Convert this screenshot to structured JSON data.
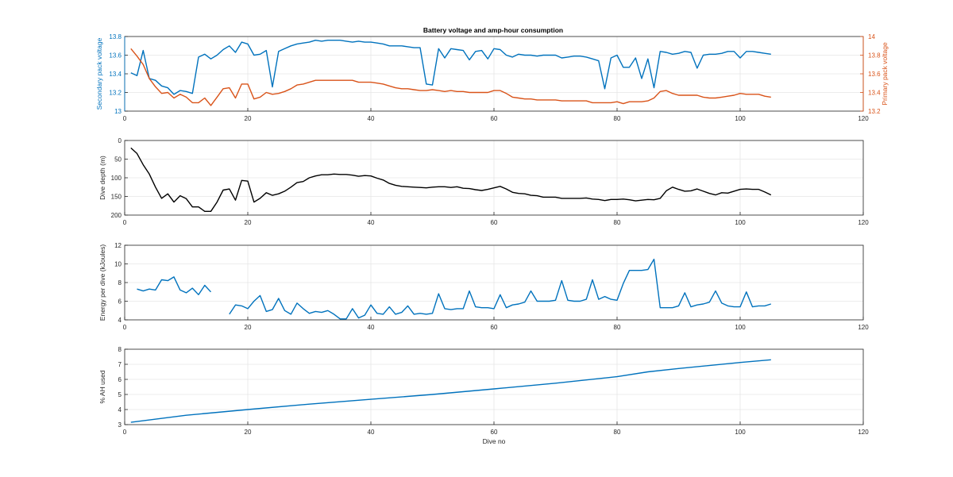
{
  "figure": {
    "title": "Battery voltage and amp-hour consumption"
  },
  "colors": {
    "blue": "#0072BD",
    "orange": "#D95319",
    "black": "#000000",
    "grid": "#e6e6e6",
    "axis": "#262626"
  },
  "chart_data": [
    {
      "type": "line",
      "title": "Battery voltage and amp-hour consumption",
      "xlabel": "",
      "xlim": [
        0,
        120
      ],
      "xticks": [
        0,
        20,
        40,
        60,
        80,
        100,
        120
      ],
      "ylabel": "Secondary pack voltage",
      "ylim": [
        13,
        13.8
      ],
      "yticks": [
        13,
        13.2,
        13.4,
        13.6,
        13.8
      ],
      "ylabel_right": "Primary pack voltage",
      "ylim_right": [
        13.2,
        14
      ],
      "yticks_right": [
        13.2,
        13.4,
        13.6,
        13.8,
        14
      ],
      "grid": true,
      "series": [
        {
          "axis": "left",
          "color": "#0072BD",
          "x": [
            1,
            2,
            3,
            4,
            5,
            6,
            7,
            8,
            9,
            10,
            11,
            12,
            13,
            14,
            15,
            16,
            17,
            18,
            19,
            20,
            21,
            22,
            23,
            24,
            25,
            26,
            27,
            28,
            29,
            30,
            31,
            32,
            33,
            34,
            35,
            36,
            37,
            38,
            39,
            40,
            41,
            42,
            43,
            44,
            45,
            46,
            47,
            48,
            49,
            50,
            51,
            52,
            53,
            54,
            55,
            56,
            57,
            58,
            59,
            60,
            61,
            62,
            63,
            64,
            65,
            66,
            67,
            68,
            69,
            70,
            71,
            72,
            73,
            74,
            75,
            76,
            77,
            78,
            79,
            80,
            81,
            82,
            83,
            84,
            85,
            86,
            87,
            88,
            89,
            90,
            91,
            92,
            93,
            94,
            95,
            96,
            97,
            98,
            99,
            100,
            101,
            102,
            103,
            104,
            105
          ],
          "values": [
            13.41,
            13.38,
            13.65,
            13.35,
            13.33,
            13.27,
            13.25,
            13.18,
            13.22,
            13.21,
            13.19,
            13.58,
            13.61,
            13.56,
            13.6,
            13.66,
            13.7,
            13.63,
            13.74,
            13.72,
            13.6,
            13.61,
            13.65,
            13.26,
            13.64,
            13.67,
            13.7,
            13.72,
            13.73,
            13.74,
            13.76,
            13.75,
            13.76,
            13.76,
            13.76,
            13.75,
            13.74,
            13.75,
            13.74,
            13.74,
            13.73,
            13.72,
            13.7,
            13.7,
            13.7,
            13.69,
            13.68,
            13.68,
            13.29,
            13.28,
            13.67,
            13.57,
            13.67,
            13.66,
            13.65,
            13.55,
            13.64,
            13.65,
            13.56,
            13.67,
            13.66,
            13.6,
            13.58,
            13.61,
            13.6,
            13.6,
            13.59,
            13.6,
            13.6,
            13.6,
            13.57,
            13.58,
            13.59,
            13.59,
            13.58,
            13.56,
            13.54,
            13.24,
            13.57,
            13.6,
            13.47,
            13.47,
            13.57,
            13.35,
            13.56,
            13.25,
            13.64,
            13.63,
            13.61,
            13.62,
            13.64,
            13.63,
            13.46,
            13.6,
            13.61,
            13.61,
            13.62,
            13.64,
            13.64,
            13.57,
            13.64,
            13.64,
            13.63,
            13.62,
            13.61
          ]
        },
        {
          "axis": "right",
          "color": "#D95319",
          "x": [
            1,
            2,
            3,
            4,
            5,
            6,
            7,
            8,
            9,
            10,
            11,
            12,
            13,
            14,
            15,
            16,
            17,
            18,
            19,
            20,
            21,
            22,
            23,
            24,
            25,
            26,
            27,
            28,
            29,
            30,
            31,
            32,
            33,
            34,
            35,
            36,
            37,
            38,
            39,
            40,
            41,
            42,
            43,
            44,
            45,
            46,
            47,
            48,
            49,
            50,
            51,
            52,
            53,
            54,
            55,
            56,
            57,
            58,
            59,
            60,
            61,
            62,
            63,
            64,
            65,
            66,
            67,
            68,
            69,
            70,
            71,
            72,
            73,
            74,
            75,
            76,
            77,
            78,
            79,
            80,
            81,
            82,
            83,
            84,
            85,
            86,
            87,
            88,
            89,
            90,
            91,
            92,
            93,
            94,
            95,
            96,
            97,
            98,
            99,
            100,
            101,
            102,
            103,
            104,
            105
          ],
          "values": [
            13.87,
            13.79,
            13.7,
            13.55,
            13.46,
            13.39,
            13.4,
            13.34,
            13.38,
            13.35,
            13.29,
            13.29,
            13.34,
            13.26,
            13.35,
            13.44,
            13.45,
            13.34,
            13.49,
            13.49,
            13.33,
            13.35,
            13.4,
            13.38,
            13.39,
            13.41,
            13.44,
            13.48,
            13.49,
            13.51,
            13.53,
            13.53,
            13.53,
            13.53,
            13.53,
            13.53,
            13.53,
            13.51,
            13.51,
            13.51,
            13.5,
            13.49,
            13.47,
            13.45,
            13.44,
            13.44,
            13.43,
            13.42,
            13.42,
            13.43,
            13.42,
            13.41,
            13.42,
            13.41,
            13.41,
            13.4,
            13.4,
            13.4,
            13.4,
            13.42,
            13.42,
            13.39,
            13.35,
            13.34,
            13.33,
            13.33,
            13.32,
            13.32,
            13.32,
            13.32,
            13.31,
            13.31,
            13.31,
            13.31,
            13.31,
            13.29,
            13.29,
            13.29,
            13.29,
            13.3,
            13.28,
            13.3,
            13.3,
            13.3,
            13.31,
            13.34,
            13.41,
            13.42,
            13.39,
            13.37,
            13.37,
            13.37,
            13.37,
            13.35,
            13.34,
            13.34,
            13.35,
            13.36,
            13.37,
            13.39,
            13.38,
            13.38,
            13.38,
            13.36,
            13.35
          ]
        }
      ]
    },
    {
      "type": "line",
      "xlabel": "",
      "xlim": [
        0,
        120
      ],
      "xticks": [
        0,
        20,
        40,
        60,
        80,
        100,
        120
      ],
      "ylabel": "Dive depth (m)",
      "ylim": [
        0,
        200
      ],
      "yticks": [
        0,
        50,
        100,
        150,
        200
      ],
      "y_reversed": true,
      "grid": true,
      "series": [
        {
          "color": "#000000",
          "x": [
            1,
            2,
            3,
            4,
            5,
            6,
            7,
            8,
            9,
            10,
            11,
            12,
            13,
            14,
            15,
            16,
            17,
            18,
            19,
            20,
            21,
            22,
            23,
            24,
            25,
            26,
            27,
            28,
            29,
            30,
            31,
            32,
            33,
            34,
            35,
            36,
            37,
            38,
            39,
            40,
            41,
            42,
            43,
            44,
            45,
            46,
            47,
            48,
            49,
            50,
            51,
            52,
            53,
            54,
            55,
            56,
            57,
            58,
            59,
            60,
            61,
            62,
            63,
            64,
            65,
            66,
            67,
            68,
            69,
            70,
            71,
            72,
            73,
            74,
            75,
            76,
            77,
            78,
            79,
            80,
            81,
            82,
            83,
            84,
            85,
            86,
            87,
            88,
            89,
            90,
            91,
            92,
            93,
            94,
            95,
            96,
            97,
            98,
            99,
            100,
            101,
            102,
            103,
            104,
            105
          ],
          "values": [
            20,
            35,
            65,
            90,
            125,
            155,
            143,
            165,
            148,
            156,
            178,
            178,
            190,
            190,
            165,
            133,
            130,
            160,
            107,
            109,
            165,
            155,
            140,
            147,
            143,
            136,
            125,
            113,
            110,
            100,
            95,
            92,
            92,
            90,
            91,
            91,
            93,
            96,
            94,
            95,
            101,
            106,
            115,
            120,
            123,
            124,
            125,
            126,
            127,
            125,
            124,
            124,
            126,
            124,
            128,
            129,
            132,
            134,
            131,
            127,
            123,
            130,
            139,
            142,
            143,
            147,
            148,
            152,
            152,
            152,
            155,
            155,
            155,
            155,
            154,
            157,
            158,
            161,
            158,
            158,
            157,
            159,
            162,
            160,
            158,
            159,
            155,
            135,
            125,
            131,
            136,
            135,
            130,
            136,
            142,
            146,
            140,
            141,
            136,
            131,
            130,
            131,
            131,
            138,
            146
          ]
        }
      ]
    },
    {
      "type": "line",
      "xlabel": "",
      "xlim": [
        0,
        120
      ],
      "xticks": [
        0,
        20,
        40,
        60,
        80,
        100,
        120
      ],
      "ylabel": "Energy per dive (kJoules)",
      "ylim": [
        4,
        12
      ],
      "yticks": [
        4,
        6,
        8,
        10,
        12
      ],
      "grid": true,
      "series": [
        {
          "color": "#0072BD",
          "x": [
            2,
            3,
            4,
            5,
            6,
            7,
            8,
            9,
            10,
            11,
            12,
            13,
            14,
            15,
            16,
            17,
            18,
            19,
            20,
            21,
            22,
            23,
            24,
            25,
            26,
            27,
            28,
            29,
            30,
            31,
            32,
            33,
            34,
            35,
            36,
            37,
            38,
            39,
            40,
            41,
            42,
            43,
            44,
            45,
            46,
            47,
            48,
            49,
            50,
            51,
            52,
            53,
            54,
            55,
            56,
            57,
            58,
            59,
            60,
            61,
            62,
            63,
            64,
            65,
            66,
            67,
            68,
            69,
            70,
            71,
            72,
            73,
            74,
            75,
            76,
            77,
            78,
            79,
            80,
            81,
            82,
            83,
            84,
            85,
            86,
            87,
            88,
            89,
            90,
            91,
            92,
            93,
            94,
            95,
            96,
            97,
            98,
            99,
            100,
            101,
            102,
            103,
            104,
            105
          ],
          "values": [
            7.3,
            7.1,
            7.3,
            7.2,
            8.3,
            8.2,
            8.6,
            7.2,
            6.9,
            7.4,
            6.7,
            7.7,
            7,
            null,
            null,
            4.6,
            5.6,
            5.5,
            5.2,
            6,
            6.6,
            4.9,
            5.1,
            6.3,
            5,
            4.6,
            5.8,
            5.2,
            4.7,
            4.9,
            4.8,
            5,
            4.6,
            4.1,
            4.1,
            5.2,
            4.2,
            4.5,
            5.6,
            4.7,
            4.6,
            5.4,
            4.6,
            4.8,
            5.5,
            4.6,
            4.7,
            4.6,
            4.7,
            6.8,
            5.2,
            5.1,
            5.2,
            5.2,
            7.1,
            5.4,
            5.3,
            5.3,
            5.2,
            6.7,
            5.3,
            5.6,
            5.7,
            5.9,
            7.1,
            6,
            6,
            6,
            6.1,
            8.2,
            6.1,
            6,
            6,
            6.2,
            8.3,
            6.2,
            6.5,
            6.2,
            6.1,
            7.9,
            9.3,
            9.3,
            9.3,
            9.4,
            10.5,
            5.3,
            5.3,
            5.3,
            5.5,
            6.9,
            5.4,
            5.6,
            5.7,
            5.9,
            7.1,
            5.8,
            5.5,
            5.4,
            5.4,
            7,
            5.4,
            5.5,
            5.5,
            5.7
          ]
        }
      ]
    },
    {
      "type": "line",
      "xlabel": "Dive no",
      "xlim": [
        0,
        120
      ],
      "xticks": [
        0,
        20,
        40,
        60,
        80,
        100,
        120
      ],
      "ylabel": "% AH used",
      "ylim": [
        3,
        8
      ],
      "yticks": [
        3,
        4,
        5,
        6,
        7,
        8
      ],
      "grid": true,
      "series": [
        {
          "color": "#0072BD",
          "x": [
            1,
            10,
            20,
            30,
            40,
            50,
            60,
            70,
            80,
            85,
            90,
            100,
            105
          ],
          "values": [
            3.15,
            3.62,
            4.0,
            4.36,
            4.68,
            5.0,
            5.37,
            5.75,
            6.18,
            6.5,
            6.72,
            7.12,
            7.3
          ]
        }
      ]
    }
  ]
}
